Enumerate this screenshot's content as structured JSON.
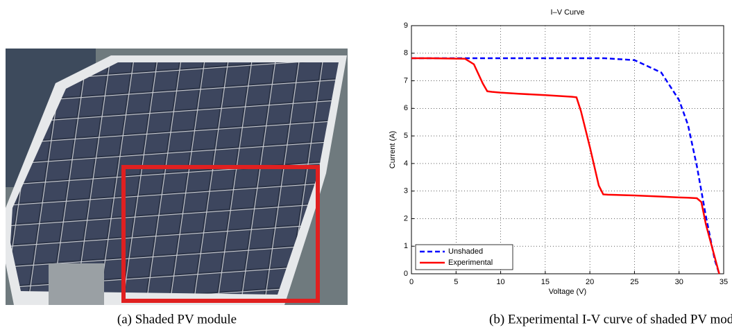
{
  "captions": [
    "(a) Shaded PV module",
    "(b) Experimental I-V curve of shaded PV mod"
  ],
  "chart_data": {
    "type": "line",
    "title": "I–V Curve",
    "x_label": "Voltage (V)",
    "y_label": "Current (A)",
    "x": [
      0,
      2,
      4,
      6,
      7,
      8,
      8.5,
      9,
      10,
      12,
      15,
      18,
      18.5,
      19,
      20,
      21,
      21.5,
      22,
      25,
      28,
      30,
      31,
      32,
      32.5,
      33,
      33.5,
      34,
      34.5
    ],
    "series": [
      {
        "name": "Unshaded",
        "color": "#0000ff",
        "line_style": "dashed",
        "values": [
          7.82,
          7.82,
          7.82,
          7.82,
          7.82,
          7.82,
          7.82,
          7.82,
          7.82,
          7.82,
          7.82,
          7.82,
          7.82,
          7.82,
          7.82,
          7.82,
          7.82,
          7.81,
          7.75,
          7.3,
          6.3,
          5.4,
          3.9,
          3.0,
          2.1,
          1.3,
          0.5,
          0
        ]
      },
      {
        "name": "Experimental",
        "color": "#ff0000",
        "line_style": "solid",
        "values": [
          7.82,
          7.82,
          7.81,
          7.8,
          7.6,
          6.9,
          6.62,
          6.6,
          6.57,
          6.53,
          6.48,
          6.42,
          6.4,
          5.9,
          4.6,
          3.2,
          2.88,
          2.87,
          2.84,
          2.8,
          2.77,
          2.76,
          2.74,
          2.6,
          1.8,
          1.2,
          0.6,
          0
        ]
      }
    ],
    "xlim": [
      0,
      35
    ],
    "ylim": [
      0,
      9
    ],
    "xticks": [
      0,
      5,
      10,
      15,
      20,
      25,
      30,
      35
    ],
    "yticks": [
      0,
      1,
      2,
      3,
      4,
      5,
      6,
      7,
      8,
      9
    ],
    "grid": true,
    "legend": "lower left"
  }
}
